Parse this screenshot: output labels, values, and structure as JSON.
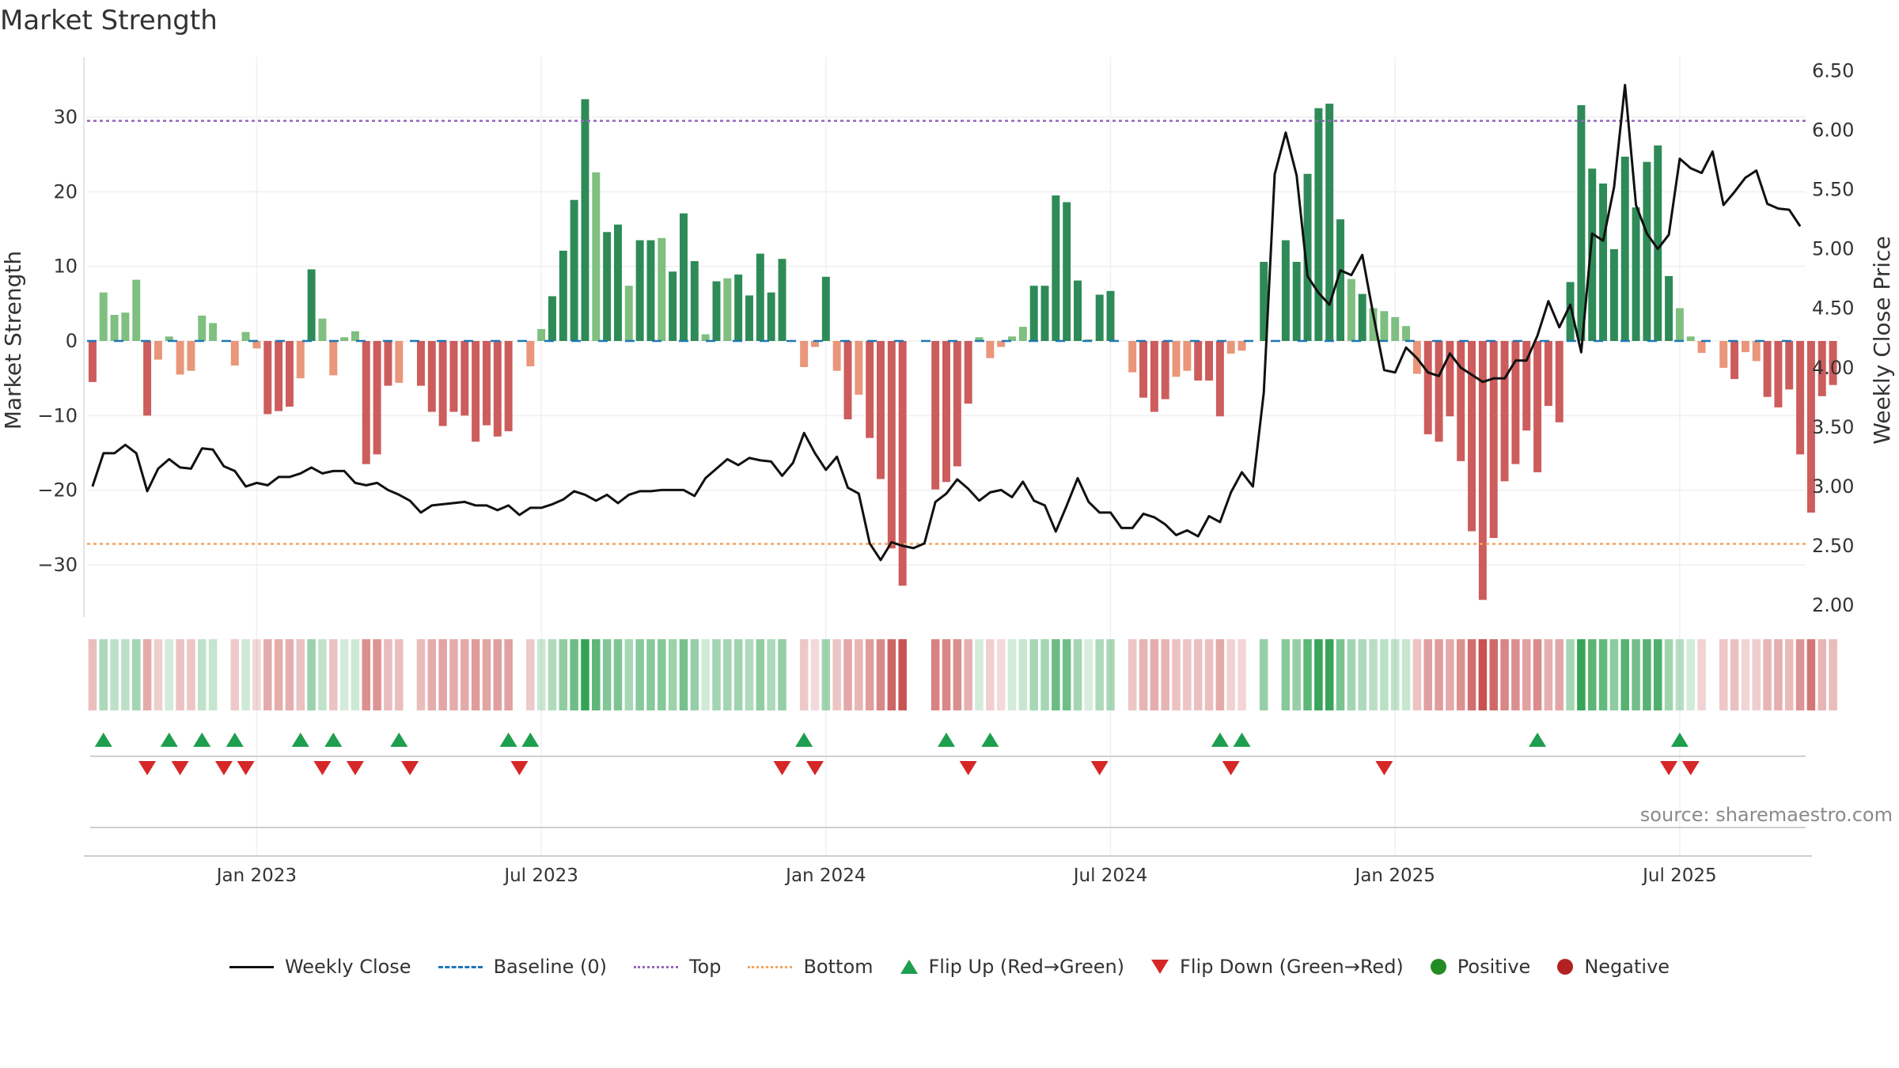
{
  "title": "Market Strength",
  "source": "source: sharemaestro.com",
  "colors": {
    "pos_strong": "#2e8b57",
    "pos_light": "#7fbf7f",
    "neg_strong": "#cd5c5c",
    "neg_light": "#e9967a",
    "close_line": "#111111",
    "baseline": "#1f77b4",
    "top_line": "#9467bd",
    "bottom_line": "#f4a460",
    "flip_up": "#1e9e4f",
    "flip_down": "#d62728",
    "positive": "#228b22",
    "negative": "#b22222"
  },
  "legend": [
    {
      "label": "Weekly Close",
      "symbol": "line"
    },
    {
      "label": "Baseline (0)",
      "symbol": "dash"
    },
    {
      "label": "Top",
      "symbol": "dotted"
    },
    {
      "label": "Bottom",
      "symbol": "dotted-orange"
    },
    {
      "label": "Flip Up (Red→Green)",
      "symbol": "tri-up"
    },
    {
      "label": "Flip Down (Green→Red)",
      "symbol": "tri-down"
    },
    {
      "label": "Positive",
      "symbol": "dot-green"
    },
    {
      "label": "Negative",
      "symbol": "dot-red"
    }
  ],
  "chart_data": {
    "type": "bar",
    "title": "Market Strength",
    "ylabel": "Market Strength",
    "y2label": "Weekly Close Price",
    "ylim": [
      -37,
      37
    ],
    "yticks": [
      30,
      20,
      10,
      0,
      -10,
      -20,
      -30
    ],
    "ytick_labels": [
      "30",
      "20",
      "10",
      "0",
      "−10",
      "−20",
      "−30"
    ],
    "y2lim": [
      1.9,
      6.55
    ],
    "y2ticks": [
      6.5,
      6.0,
      5.5,
      5.0,
      4.5,
      4.0,
      3.5,
      3.0,
      2.5,
      2.0
    ],
    "y2tick_labels": [
      "6.50",
      "6.00",
      "5.50",
      "5.00",
      "4.50",
      "4.00",
      "3.50",
      "3.00",
      "2.50",
      "2.00"
    ],
    "top_level": 29.5,
    "bottom_level": -27.2,
    "x_week_range": [
      0,
      157
    ],
    "xtick_weeks": [
      15,
      41,
      67,
      93,
      119,
      145
    ],
    "xtick_labels": [
      "Jan 2023",
      "Jul 2023",
      "Jan 2024",
      "Jul 2024",
      "Jan 2025",
      "Jul 2025"
    ],
    "strength": [
      -5.5,
      6.5,
      3.5,
      3.8,
      8.2,
      -10,
      -2.5,
      0.6,
      -4.5,
      -4,
      3.4,
      2.4,
      0,
      -3.3,
      1.2,
      -1,
      -9.8,
      -9.4,
      -8.8,
      -5,
      9.6,
      3,
      -4.6,
      0.5,
      1.3,
      -16.5,
      -15.2,
      -6,
      -5.6,
      0,
      -6,
      -9.5,
      -11.4,
      -9.5,
      -10,
      -13.5,
      -11.3,
      -12.8,
      -12.1,
      0,
      -3.4,
      1.6,
      6,
      12.1,
      18.9,
      32.4,
      22.6,
      14.6,
      15.6,
      7.4,
      13.5,
      13.5,
      13.8,
      9.3,
      17.1,
      10.7,
      0.9,
      8,
      8.4,
      8.9,
      6.1,
      11.7,
      6.5,
      11,
      0,
      -3.5,
      -0.8,
      8.6,
      -4,
      -10.5,
      -7.2,
      -13,
      -18.5,
      -27.8,
      -32.8,
      0,
      0,
      -19.9,
      -18.9,
      -16.8,
      -8.4,
      0.5,
      -2.3,
      -0.8,
      0.6,
      1.9,
      7.4,
      7.4,
      19.5,
      18.6,
      8.1,
      0.2,
      6.2,
      6.7,
      0,
      -4.2,
      -7.6,
      -9.5,
      -7.8,
      -4.8,
      -4,
      -5.3,
      -5.3,
      -10.1,
      -1.7,
      -1.3,
      0,
      10.6,
      0,
      13.5,
      10.6,
      22.4,
      31.2,
      31.8,
      16.3,
      8.3,
      6.3,
      4.4,
      4,
      3.2,
      2,
      -4.4,
      -12.5,
      -13.5,
      -10.1,
      -16.1,
      -25.5,
      -34.7,
      -26.4,
      -18.8,
      -16.5,
      -12,
      -17.6,
      -8.7,
      -10.9,
      7.9,
      31.6,
      23.1,
      21.1,
      12.3,
      24.7,
      17.9,
      24,
      26.2,
      8.7,
      4.4,
      0.6,
      -1.6,
      0,
      -3.6,
      -5.1,
      -1.5,
      -2.7,
      -7.5,
      -8.9,
      -6.5,
      -15.2,
      -23,
      -7.4,
      -5.9
    ],
    "weekly_close": [
      3.0,
      3.28,
      3.28,
      3.35,
      3.28,
      2.96,
      3.15,
      3.23,
      3.16,
      3.15,
      3.32,
      3.31,
      3.17,
      3.13,
      3.0,
      3.03,
      3.01,
      3.08,
      3.08,
      3.11,
      3.16,
      3.11,
      3.13,
      3.13,
      3.03,
      3.01,
      3.03,
      2.97,
      2.93,
      2.88,
      2.78,
      2.84,
      2.85,
      2.86,
      2.87,
      2.84,
      2.84,
      2.8,
      2.84,
      2.76,
      2.82,
      2.82,
      2.85,
      2.89,
      2.96,
      2.93,
      2.88,
      2.93,
      2.86,
      2.93,
      2.96,
      2.96,
      2.97,
      2.97,
      2.97,
      2.92,
      3.07,
      3.15,
      3.23,
      3.18,
      3.24,
      3.22,
      3.21,
      3.09,
      3.2,
      3.45,
      3.28,
      3.14,
      3.25,
      2.99,
      2.94,
      2.52,
      2.38,
      2.53,
      2.5,
      2.48,
      2.52,
      2.87,
      2.94,
      3.06,
      2.98,
      2.88,
      2.95,
      2.97,
      2.91,
      3.04,
      2.88,
      2.84,
      2.62,
      2.84,
      3.07,
      2.87,
      2.78,
      2.78,
      2.65,
      2.65,
      2.77,
      2.74,
      2.68,
      2.59,
      2.63,
      2.58,
      2.75,
      2.7,
      2.95,
      3.12,
      3.0,
      3.79,
      5.63,
      5.98,
      5.62,
      4.77,
      4.63,
      4.53,
      4.82,
      4.78,
      4.95,
      4.45,
      3.98,
      3.96,
      4.17,
      4.08,
      3.96,
      3.93,
      4.12,
      4.0,
      3.94,
      3.88,
      3.91,
      3.91,
      4.06,
      4.06,
      4.27,
      4.56,
      4.34,
      4.53,
      4.13,
      5.13,
      5.07,
      5.52,
      6.38,
      5.37,
      5.13,
      5.0,
      5.12,
      5.76,
      5.68,
      5.64,
      5.82,
      5.37,
      5.48,
      5.6,
      5.66,
      5.38,
      5.34,
      5.33,
      5.19
    ],
    "flip_up_weeks": [
      1,
      7,
      10,
      13,
      19,
      22,
      28,
      38,
      40,
      65,
      78,
      82,
      103,
      105,
      132,
      145
    ],
    "flip_down_weeks": [
      5,
      8,
      12,
      14,
      21,
      24,
      29,
      39,
      63,
      66,
      80,
      92,
      104,
      118,
      144,
      146
    ]
  }
}
